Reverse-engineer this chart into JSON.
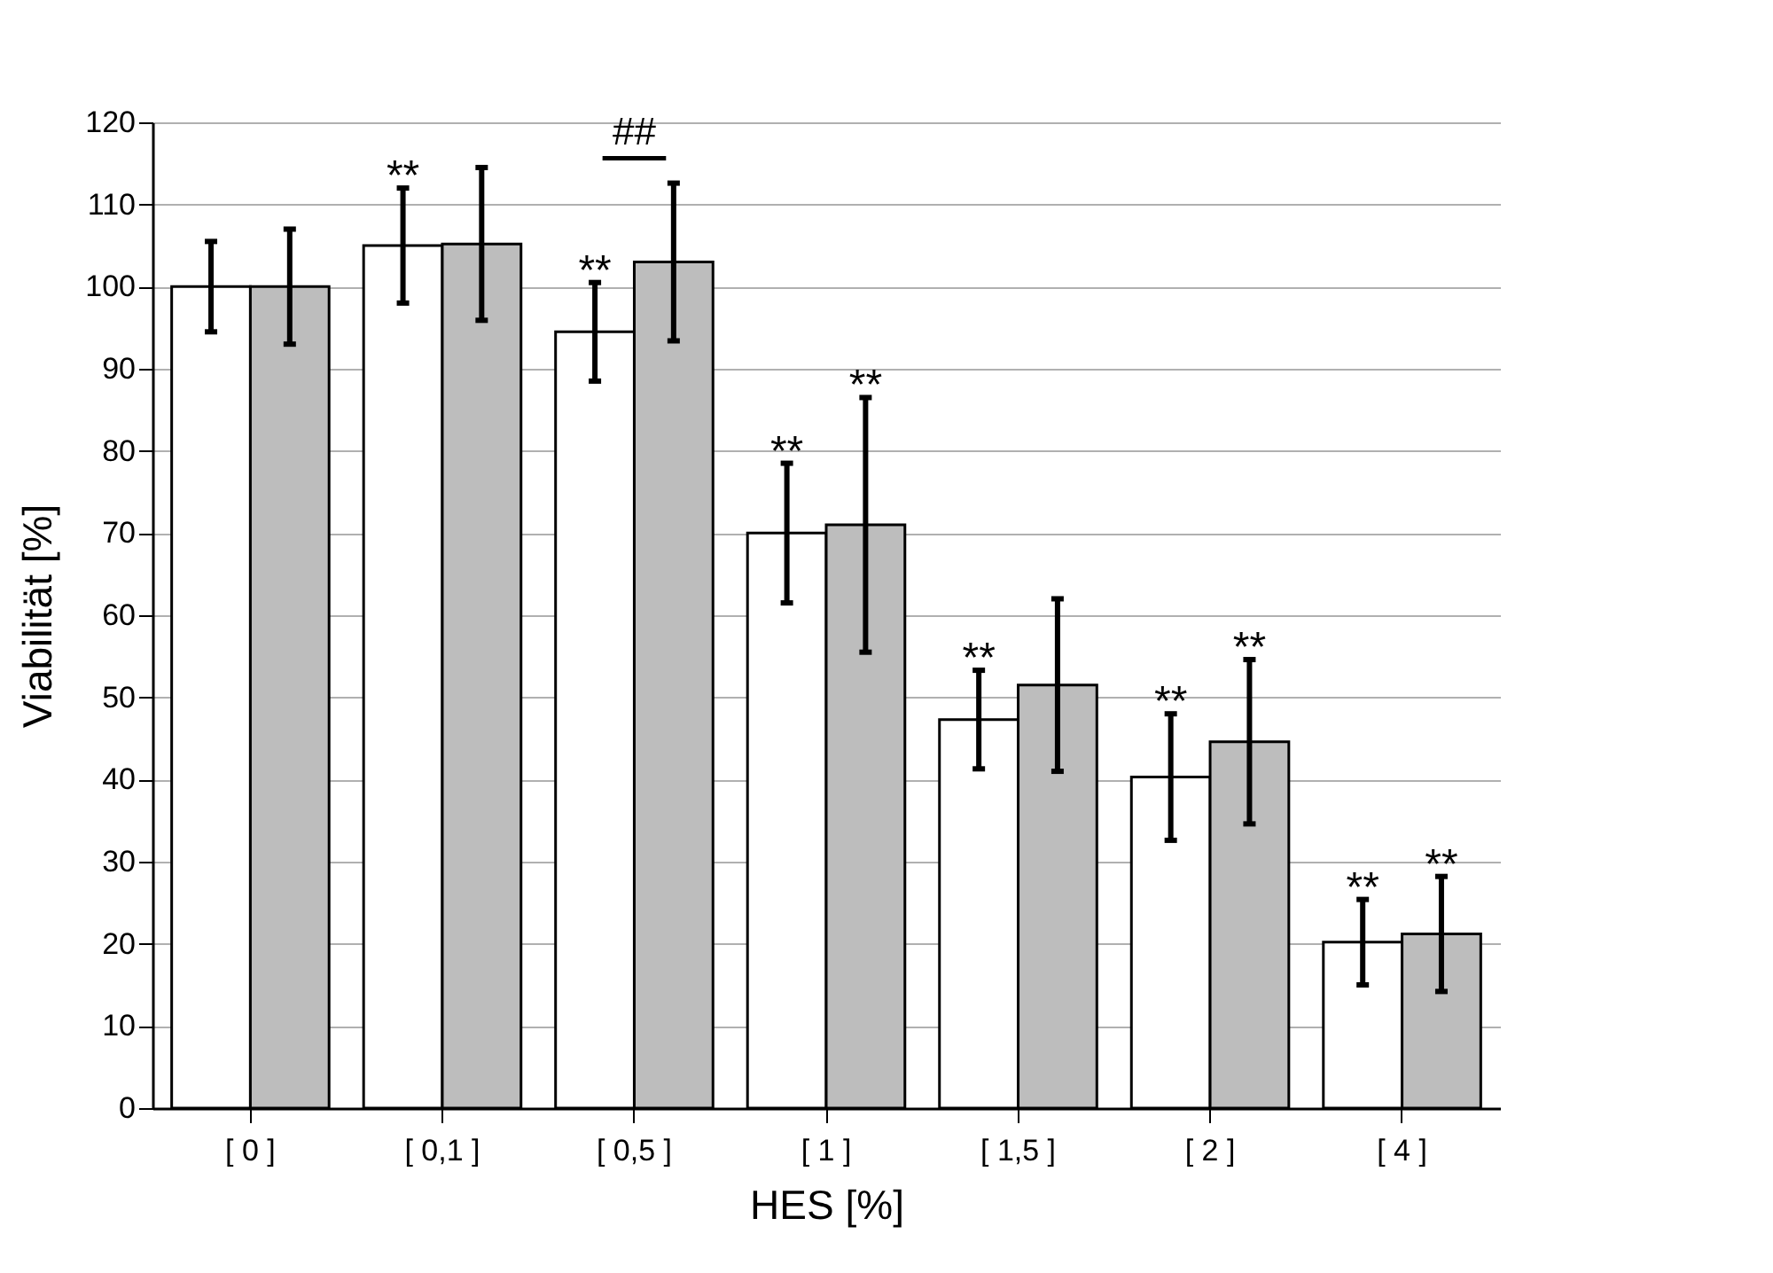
{
  "chart_data": {
    "type": "bar",
    "xlabel": "HES [%]",
    "ylabel": "Viabilität [%]",
    "categories": [
      "[ 0 ]",
      "[ 0,1 ]",
      "[ 0,5 ]",
      "[ 1 ]",
      "[ 1,5 ]",
      "[ 2 ]",
      "[ 4 ]"
    ],
    "series": [
      {
        "color": "#ffffff",
        "values": [
          100,
          105,
          94.5,
          70,
          47.3,
          40.3,
          20.2
        ],
        "errors": [
          5.5,
          7,
          6,
          8.5,
          6,
          7.7,
          5.2
        ]
      },
      {
        "color": "#bdbdbd",
        "values": [
          100,
          105.2,
          103,
          71,
          51.5,
          44.6,
          21.2
        ],
        "errors": [
          7,
          9.3,
          9.6,
          15.5,
          10.5,
          10,
          7
        ]
      }
    ],
    "ylim": [
      0,
      120
    ],
    "yticks": [
      0,
      10,
      20,
      30,
      40,
      50,
      60,
      70,
      80,
      90,
      100,
      110,
      120
    ],
    "grid": "y",
    "annotations": [
      {
        "text": "**",
        "x": "[ 0,1 ]",
        "y": 105
      },
      {
        "text": "**",
        "x": "[ 0,5 ]",
        "y": 94.5
      },
      "##",
      {
        "text": "**",
        "x": "[ 1 ]",
        "y": 70
      },
      {
        "text": "**",
        "x": "[ 1 ]",
        "y": 71
      },
      {
        "text": "**",
        "x": "[ 1,5 ]",
        "y": 47.3
      },
      {
        "text": "**",
        "x": "[ 2 ]",
        "y": 40.3
      },
      {
        "text": "**",
        "x": "[ 2 ]",
        "y": 44.6
      },
      {
        "text": "**",
        "x": "[ 4 ]",
        "y": 20.2
      },
      {
        "text": "**",
        "x": "[ 4 ]",
        "y": 21.2
      }
    ]
  }
}
